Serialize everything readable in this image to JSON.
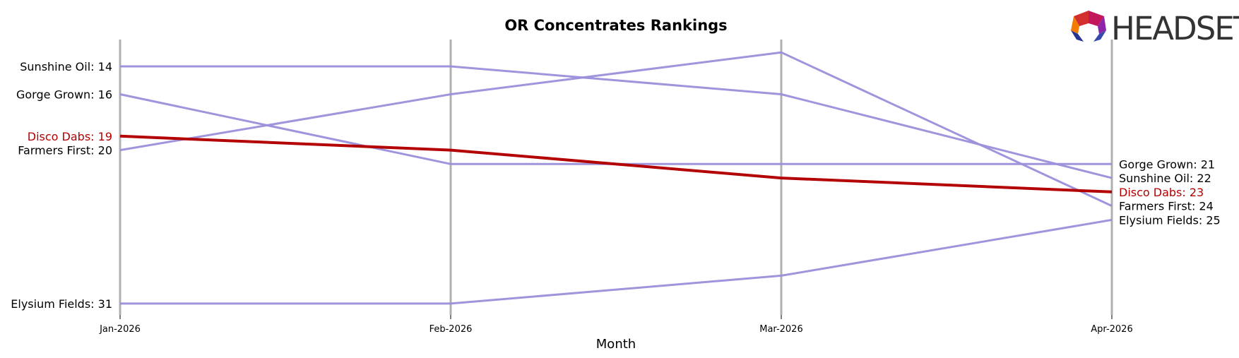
{
  "chart_data": {
    "type": "line",
    "title": "OR Concentrates Rankings",
    "xlabel": "Month",
    "ylabel": "",
    "categories": [
      "Jan-2026",
      "Feb-2026",
      "Mar-2026",
      "Apr-2026"
    ],
    "y_inverted": true,
    "ylim": [
      12,
      33
    ],
    "grid": "vertical lines at each month",
    "series": [
      {
        "name": "Sunshine Oil",
        "values": [
          14,
          14,
          16,
          22
        ],
        "color": "#9a8fdb",
        "highlight": false
      },
      {
        "name": "Gorge Grown",
        "values": [
          16,
          21,
          21,
          21
        ],
        "color": "#9a8fdb",
        "highlight": false
      },
      {
        "name": "Farmers First",
        "values": [
          20,
          16,
          13,
          24
        ],
        "color": "#9a8fdb",
        "highlight": false
      },
      {
        "name": "Elysium Fields",
        "values": [
          31,
          31,
          29,
          25
        ],
        "color": "#9a8fdb",
        "highlight": false
      },
      {
        "name": "Disco Dabs",
        "values": [
          19,
          20,
          22,
          23
        ],
        "color": "#b30000",
        "highlight": true
      }
    ],
    "start_labels": [
      {
        "text": "Sunshine Oil: 14",
        "rank": 14,
        "highlight": false
      },
      {
        "text": "Gorge Grown: 16",
        "rank": 16,
        "highlight": false
      },
      {
        "text": "Disco Dabs: 19",
        "rank": 19,
        "highlight": true
      },
      {
        "text": "Farmers First: 20",
        "rank": 20,
        "highlight": false
      },
      {
        "text": "Elysium Fields: 31",
        "rank": 31,
        "highlight": false
      }
    ],
    "end_labels": [
      {
        "text": "Gorge Grown: 21",
        "rank": 21,
        "highlight": false
      },
      {
        "text": "Sunshine Oil: 22",
        "rank": 22,
        "highlight": false
      },
      {
        "text": "Disco Dabs: 23",
        "rank": 23,
        "highlight": true
      },
      {
        "text": "Farmers First: 24",
        "rank": 24,
        "highlight": false
      },
      {
        "text": "Elysium Fields: 25",
        "rank": 25,
        "highlight": false
      }
    ]
  },
  "logo": {
    "text": "HEADSET"
  },
  "colors": {
    "highlight": "#b30000",
    "series": "#9a8fdb",
    "grid": "#b0b0b0"
  }
}
